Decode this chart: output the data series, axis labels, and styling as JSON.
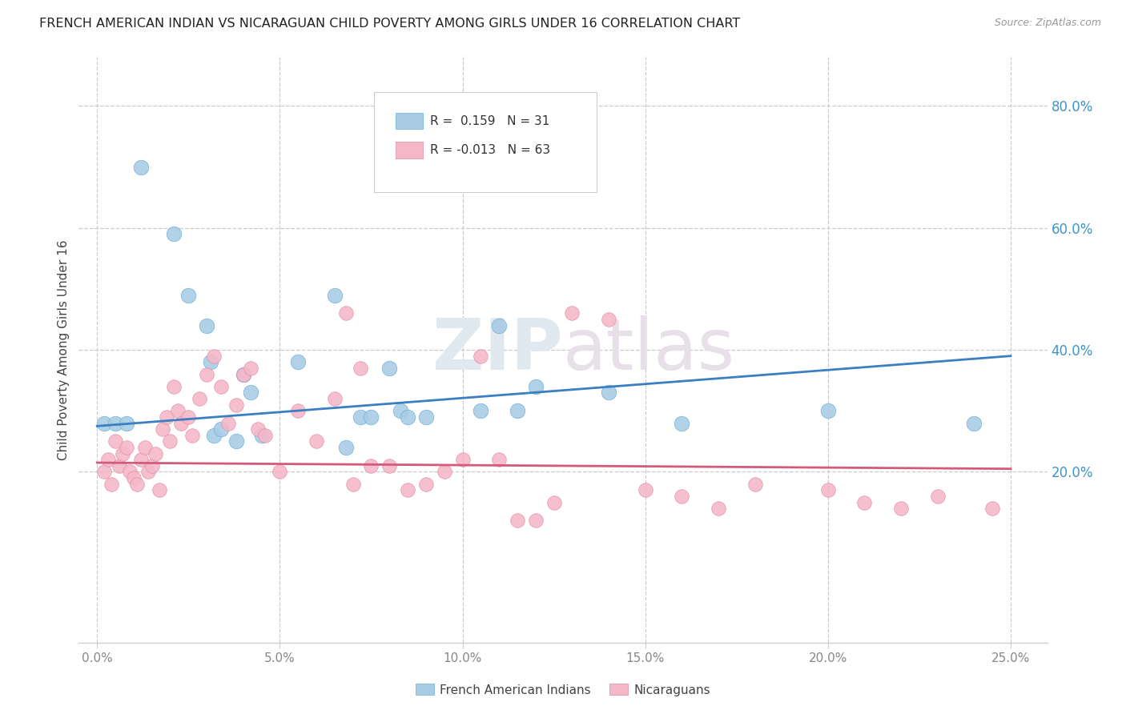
{
  "title": "FRENCH AMERICAN INDIAN VS NICARAGUAN CHILD POVERTY AMONG GIRLS UNDER 16 CORRELATION CHART",
  "source": "Source: ZipAtlas.com",
  "ylabel": "Child Poverty Among Girls Under 16",
  "xlabel_ticks": [
    "0.0%",
    "5.0%",
    "10.0%",
    "15.0%",
    "20.0%",
    "25.0%"
  ],
  "xlabel_vals": [
    0,
    5,
    10,
    15,
    20,
    25
  ],
  "ylabel_ticks": [
    "80.0%",
    "60.0%",
    "40.0%",
    "20.0%"
  ],
  "ylabel_vals": [
    80,
    60,
    40,
    20
  ],
  "xlim": [
    -0.5,
    26
  ],
  "ylim": [
    -8,
    88
  ],
  "plot_ylim_bottom": -8,
  "plot_ylim_top": 88,
  "legend1_label": "French American Indians",
  "legend2_label": "Nicaraguans",
  "R1": "0.159",
  "N1": "31",
  "R2": "-0.013",
  "N2": "63",
  "blue_color": "#a8cce4",
  "pink_color": "#f4b8c8",
  "blue_edge_color": "#6baed6",
  "pink_edge_color": "#e08aaa",
  "trendline_blue": "#3a7fc1",
  "trendline_pink": "#d45a7a",
  "blue_scatter_x": [
    1.2,
    2.1,
    2.5,
    3.0,
    3.1,
    3.2,
    3.4,
    3.8,
    4.0,
    4.2,
    4.5,
    5.5,
    6.5,
    6.8,
    7.2,
    7.5,
    8.0,
    8.3,
    8.5,
    9.0,
    10.5,
    11.0,
    11.5,
    12.0,
    14.0,
    16.0,
    20.0,
    24.0,
    0.2,
    0.5,
    0.8
  ],
  "blue_scatter_y": [
    70,
    59,
    49,
    44,
    38,
    26,
    27,
    25,
    36,
    33,
    26,
    38,
    49,
    24,
    29,
    29,
    37,
    30,
    29,
    29,
    30,
    44,
    30,
    34,
    33,
    28,
    30,
    28,
    28,
    28,
    28
  ],
  "pink_scatter_x": [
    0.2,
    0.3,
    0.4,
    0.5,
    0.6,
    0.7,
    0.8,
    0.9,
    1.0,
    1.1,
    1.2,
    1.3,
    1.4,
    1.5,
    1.6,
    1.7,
    1.8,
    1.9,
    2.0,
    2.1,
    2.2,
    2.3,
    2.5,
    2.6,
    2.8,
    3.0,
    3.2,
    3.4,
    3.6,
    3.8,
    4.0,
    4.2,
    4.4,
    4.6,
    5.0,
    5.5,
    6.0,
    6.5,
    7.0,
    7.5,
    8.0,
    8.5,
    9.0,
    9.5,
    10.0,
    11.0,
    12.0,
    12.5,
    13.0,
    14.0,
    15.0,
    16.0,
    17.0,
    18.0,
    20.0,
    21.0,
    22.0,
    23.0,
    24.5,
    6.8,
    7.2,
    10.5,
    11.5
  ],
  "pink_scatter_y": [
    20,
    22,
    18,
    25,
    21,
    23,
    24,
    20,
    19,
    18,
    22,
    24,
    20,
    21,
    23,
    17,
    27,
    29,
    25,
    34,
    30,
    28,
    29,
    26,
    32,
    36,
    39,
    34,
    28,
    31,
    36,
    37,
    27,
    26,
    20,
    30,
    25,
    32,
    18,
    21,
    21,
    17,
    18,
    20,
    22,
    22,
    12,
    15,
    46,
    45,
    17,
    16,
    14,
    18,
    17,
    15,
    14,
    16,
    14,
    46,
    37,
    39,
    12
  ],
  "trendline1_x": [
    0,
    25
  ],
  "trendline1_y": [
    27.5,
    39.0
  ],
  "trendline2_x": [
    0,
    25
  ],
  "trendline2_y": [
    21.5,
    20.5
  ],
  "watermark_zip": "ZIP",
  "watermark_atlas": "atlas",
  "background_color": "#ffffff",
  "grid_color": "#cccccc",
  "axis_color": "#cccccc",
  "text_color": "#444444",
  "blue_label_color": "#4292c6",
  "tick_label_color": "#888888"
}
